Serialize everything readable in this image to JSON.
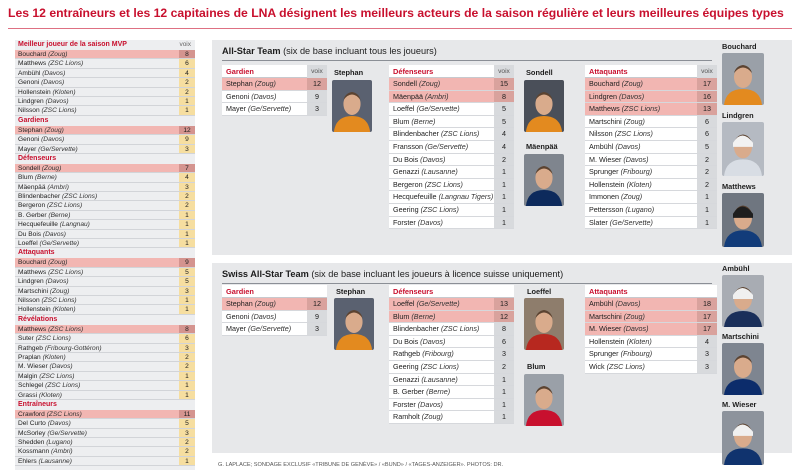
{
  "headline": "Les 12 entraîneurs et les 12 capitaines de LNA désignent les meilleurs acteurs de la saison régulière et leurs meilleures équipes types",
  "sidebar": {
    "value_label": "voix",
    "sections": [
      {
        "title": "Meilleur joueur de la saison MVP",
        "rows": [
          {
            "name": "Bouchard",
            "team": "(Zoug)",
            "votes": "8",
            "hl": true
          },
          {
            "name": "Matthews",
            "team": "(ZSC Lions)",
            "votes": "6"
          },
          {
            "name": "Ambühl",
            "team": "(Davos)",
            "votes": "4"
          },
          {
            "name": "Genoni",
            "team": "(Davos)",
            "votes": "2"
          },
          {
            "name": "Hollenstein",
            "team": "(Kloten)",
            "votes": "2"
          },
          {
            "name": "Lindgren",
            "team": "(Davos)",
            "votes": "1"
          },
          {
            "name": "Nilsson",
            "team": "(ZSC Lions)",
            "votes": "1"
          }
        ]
      },
      {
        "title": "Gardiens",
        "rows": [
          {
            "name": "Stephan",
            "team": "(Zoug)",
            "votes": "12",
            "hl": true
          },
          {
            "name": "Genoni",
            "team": "(Davos)",
            "votes": "9"
          },
          {
            "name": "Mayer",
            "team": "(Ge/Servette)",
            "votes": "3"
          }
        ]
      },
      {
        "title": "Défenseurs",
        "rows": [
          {
            "name": "Sondell",
            "team": "(Zoug)",
            "votes": "7",
            "hl": true
          },
          {
            "name": "Blum",
            "team": "(Berne)",
            "votes": "4"
          },
          {
            "name": "Mäenpää",
            "team": "(Ambri)",
            "votes": "3"
          },
          {
            "name": "Blindenbacher",
            "team": "(ZSC Lions)",
            "votes": "2"
          },
          {
            "name": "Bergeron",
            "team": "(ZSC Lions)",
            "votes": "2"
          },
          {
            "name": "B. Gerber",
            "team": "(Berne)",
            "votes": "1"
          },
          {
            "name": "Hecquefeuille",
            "team": "(Langnau)",
            "votes": "1"
          },
          {
            "name": "Du Bois",
            "team": "(Davos)",
            "votes": "1"
          },
          {
            "name": "Loeffel",
            "team": "(Ge/Servette)",
            "votes": "1"
          }
        ]
      },
      {
        "title": "Attaquants",
        "rows": [
          {
            "name": "Bouchard",
            "team": "(Zoug)",
            "votes": "9",
            "hl": true
          },
          {
            "name": "Matthews",
            "team": "(ZSC Lions)",
            "votes": "5"
          },
          {
            "name": "Lindgren",
            "team": "(Davos)",
            "votes": "5"
          },
          {
            "name": "Martschini",
            "team": "(Zoug)",
            "votes": "3"
          },
          {
            "name": "Nilsson",
            "team": "(ZSC Lions)",
            "votes": "1"
          },
          {
            "name": "Hollenstein",
            "team": "(Kloten)",
            "votes": "1"
          }
        ]
      },
      {
        "title": "Révélations",
        "rows": [
          {
            "name": "Matthews",
            "team": "(ZSC Lions)",
            "votes": "8",
            "hl": true
          },
          {
            "name": "Suter",
            "team": "(ZSC Lions)",
            "votes": "6"
          },
          {
            "name": "Rathgeb",
            "team": "(Fribourg-Gottéron)",
            "votes": "3"
          },
          {
            "name": "Praplan",
            "team": "(Kloten)",
            "votes": "2"
          },
          {
            "name": "M. Wieser",
            "team": "(Davos)",
            "votes": "2"
          },
          {
            "name": "Malgin",
            "team": "(ZSC Lions)",
            "votes": "1"
          },
          {
            "name": "Schlegel",
            "team": "(ZSC Lions)",
            "votes": "1"
          },
          {
            "name": "Grassi",
            "team": "(Kloten)",
            "votes": "1"
          }
        ]
      },
      {
        "title": "Entraîneurs",
        "rows": [
          {
            "name": "Crawford",
            "team": "(ZSC Lions)",
            "votes": "11",
            "hl": true
          },
          {
            "name": "Del Curto",
            "team": "(Davos)",
            "votes": "5"
          },
          {
            "name": "McSorley",
            "team": "(Ge/Servette)",
            "votes": "3"
          },
          {
            "name": "Shedden",
            "team": "(Lugano)",
            "votes": "2"
          },
          {
            "name": "Kossmann",
            "team": "(Ambri)",
            "votes": "2"
          },
          {
            "name": "Ehlers",
            "team": "(Lausanne)",
            "votes": "1"
          }
        ]
      }
    ]
  },
  "allstar": {
    "title_bold": "All-Star Team",
    "title_rest": " (six de base incluant tous les joueurs)",
    "value_label": "voix",
    "gardien_title": "Gardien",
    "gardiens": [
      {
        "name": "Stephan",
        "team": "(Zoug)",
        "votes": "12",
        "hl": true
      },
      {
        "name": "Genoni",
        "team": "(Davos)",
        "votes": "9"
      },
      {
        "name": "Mayer",
        "team": "(Ge/Servette)",
        "votes": "3"
      }
    ],
    "defenseurs_title": "Défenseurs",
    "defenseurs": [
      {
        "name": "Sondell",
        "team": "(Zoug)",
        "votes": "15",
        "hl": true
      },
      {
        "name": "Mäenpää",
        "team": "(Ambri)",
        "votes": "8",
        "hl": true
      },
      {
        "name": "Loeffel",
        "team": "(Ge/Servette)",
        "votes": "5"
      },
      {
        "name": "Blum",
        "team": "(Berne)",
        "votes": "5"
      },
      {
        "name": "Blindenbacher",
        "team": "(ZSC Lions)",
        "votes": "4"
      },
      {
        "name": "Fransson",
        "team": "(Ge/Servette)",
        "votes": "4"
      },
      {
        "name": "Du Bois",
        "team": "(Davos)",
        "votes": "2"
      },
      {
        "name": "Genazzi",
        "team": "(Lausanne)",
        "votes": "1"
      },
      {
        "name": "Bergeron",
        "team": "(ZSC Lions)",
        "votes": "1"
      },
      {
        "name": "Hecquefeuille",
        "team": "(Langnau Tigers)",
        "votes": "1"
      },
      {
        "name": "Geering",
        "team": "(ZSC Lions)",
        "votes": "1"
      },
      {
        "name": "Forster",
        "team": "(Davos)",
        "votes": "1"
      }
    ],
    "attaquants_title": "Attaquants",
    "attaquants": [
      {
        "name": "Bouchard",
        "team": "(Zoug)",
        "votes": "17",
        "hl": true
      },
      {
        "name": "Lindgren",
        "team": "(Davos)",
        "votes": "16",
        "hl": true
      },
      {
        "name": "Matthews",
        "team": "(ZSC Lions)",
        "votes": "13",
        "hl": true
      },
      {
        "name": "Martschini",
        "team": "(Zoug)",
        "votes": "6"
      },
      {
        "name": "Nilsson",
        "team": "(ZSC Lions)",
        "votes": "6"
      },
      {
        "name": "Ambühl",
        "team": "(Davos)",
        "votes": "5"
      },
      {
        "name": "M. Wieser",
        "team": "(Davos)",
        "votes": "2"
      },
      {
        "name": "Sprunger",
        "team": "(Fribourg)",
        "votes": "2"
      },
      {
        "name": "Hollenstein",
        "team": "(Kloten)",
        "votes": "2"
      },
      {
        "name": "Immonen",
        "team": "(Zoug)",
        "votes": "1"
      },
      {
        "name": "Pettersson",
        "team": "(Lugano)",
        "votes": "1"
      },
      {
        "name": "Slater",
        "team": "(Ge/Servette)",
        "votes": "1"
      }
    ],
    "photo_labels": {
      "stephan": "Stephan",
      "sondell": "Sondell",
      "maenpaa": "Mäenpää",
      "bouchard": "Bouchard",
      "lindgren": "Lindgren",
      "matthews": "Matthews"
    }
  },
  "swiss": {
    "title_bold": "Swiss All-Star Team",
    "title_rest": " (six de base incluant les joueurs à licence suisse uniquement)",
    "gardien_title": "Gardien",
    "gardiens": [
      {
        "name": "Stephan",
        "team": "(Zoug)",
        "votes": "12",
        "hl": true
      },
      {
        "name": "Genoni",
        "team": "(Davos)",
        "votes": "9"
      },
      {
        "name": "Mayer",
        "team": "(Ge/Servette)",
        "votes": "3"
      }
    ],
    "defenseurs_title": "Défenseurs",
    "defenseurs": [
      {
        "name": "Loeffel",
        "team": "(Ge/Servette)",
        "votes": "13",
        "hl": true
      },
      {
        "name": "Blum",
        "team": "(Berne)",
        "votes": "12",
        "hl": true
      },
      {
        "name": "Blindenbacher",
        "team": "(ZSC Lions)",
        "votes": "8"
      },
      {
        "name": "Du Bois",
        "team": "(Davos)",
        "votes": "6"
      },
      {
        "name": "Rathgeb",
        "team": "(Fribourg)",
        "votes": "3"
      },
      {
        "name": "Geering",
        "team": "(ZSC Lions)",
        "votes": "2"
      },
      {
        "name": "Genazzi",
        "team": "(Lausanne)",
        "votes": "1"
      },
      {
        "name": "B. Gerber",
        "team": "(Berne)",
        "votes": "1"
      },
      {
        "name": "Forster",
        "team": "(Davos)",
        "votes": "1"
      },
      {
        "name": "Ramholt",
        "team": "(Zoug)",
        "votes": "1"
      }
    ],
    "attaquants_title": "Attaquants",
    "attaquants": [
      {
        "name": "Ambühl",
        "team": "(Davos)",
        "votes": "18",
        "hl": true
      },
      {
        "name": "Martschini",
        "team": "(Zoug)",
        "votes": "17",
        "hl": true
      },
      {
        "name": "M. Wieser",
        "team": "(Davos)",
        "votes": "17",
        "hl": true
      },
      {
        "name": "Hollenstein",
        "team": "(Kloten)",
        "votes": "4"
      },
      {
        "name": "Sprunger",
        "team": "(Fribourg)",
        "votes": "3"
      },
      {
        "name": "Wick",
        "team": "(ZSC Lions)",
        "votes": "3"
      }
    ],
    "photo_labels": {
      "stephan": "Stephan",
      "loeffel": "Loeffel",
      "blum": "Blum",
      "ambuehl": "Ambühl",
      "martschini": "Martschini",
      "wieser": "M. Wieser"
    }
  },
  "credits": "G. LAPLACE; SONDAGE EXCLUSIF «TRIBUNE DE GENÈVE» / «BUND» / «TAGES-ANZEIGER». PHOTOS: DR.",
  "colors": {
    "accent": "#c8102e",
    "highlight": "#f2b6b2",
    "votes_bg": "#f6dea0",
    "panel_bg": "#e7e8ea"
  }
}
